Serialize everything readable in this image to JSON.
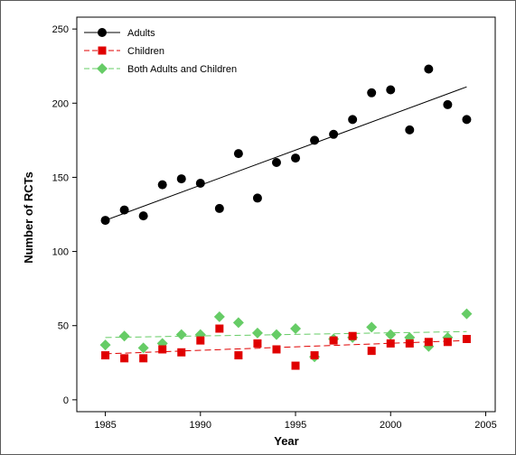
{
  "chart_data": {
    "type": "scatter",
    "title": "",
    "xlabel": "Year",
    "ylabel": "Number of RCTs",
    "xlim": [
      1983.5,
      2005.5
    ],
    "ylim": [
      -8,
      258
    ],
    "xticks": [
      1985,
      1990,
      1995,
      2000,
      2005
    ],
    "yticks": [
      0,
      50,
      100,
      150,
      200,
      250
    ],
    "grid": false,
    "legend_position": "top-left",
    "x": [
      1985,
      1986,
      1987,
      1988,
      1989,
      1990,
      1991,
      1992,
      1993,
      1994,
      1995,
      1996,
      1997,
      1998,
      1999,
      2000,
      2001,
      2002,
      2003,
      2004
    ],
    "series": [
      {
        "name": "Adults",
        "color": "#000000",
        "marker": "circle",
        "values": [
          121,
          128,
          124,
          145,
          149,
          146,
          129,
          166,
          136,
          160,
          163,
          175,
          179,
          189,
          207,
          209,
          182,
          223,
          199,
          189
        ],
        "trend": {
          "from": [
            1985,
            121
          ],
          "to": [
            2004,
            211
          ],
          "style": "solid"
        }
      },
      {
        "name": "Children",
        "color": "#e00000",
        "marker": "square",
        "values": [
          30,
          28,
          28,
          34,
          32,
          40,
          48,
          30,
          38,
          34,
          23,
          30,
          40,
          43,
          33,
          38,
          38,
          39,
          39,
          41
        ],
        "trend": {
          "from": [
            1985,
            31
          ],
          "to": [
            2004,
            40
          ],
          "style": "dashed"
        }
      },
      {
        "name": "Both Adults and Children",
        "color": "#66cc66",
        "marker": "diamond",
        "values": [
          37,
          43,
          35,
          38,
          44,
          44,
          56,
          52,
          45,
          44,
          48,
          29,
          41,
          42,
          49,
          44,
          42,
          36,
          42,
          58
        ],
        "trend": {
          "from": [
            1985,
            42
          ],
          "to": [
            2004,
            46
          ],
          "style": "dashed"
        }
      }
    ]
  }
}
